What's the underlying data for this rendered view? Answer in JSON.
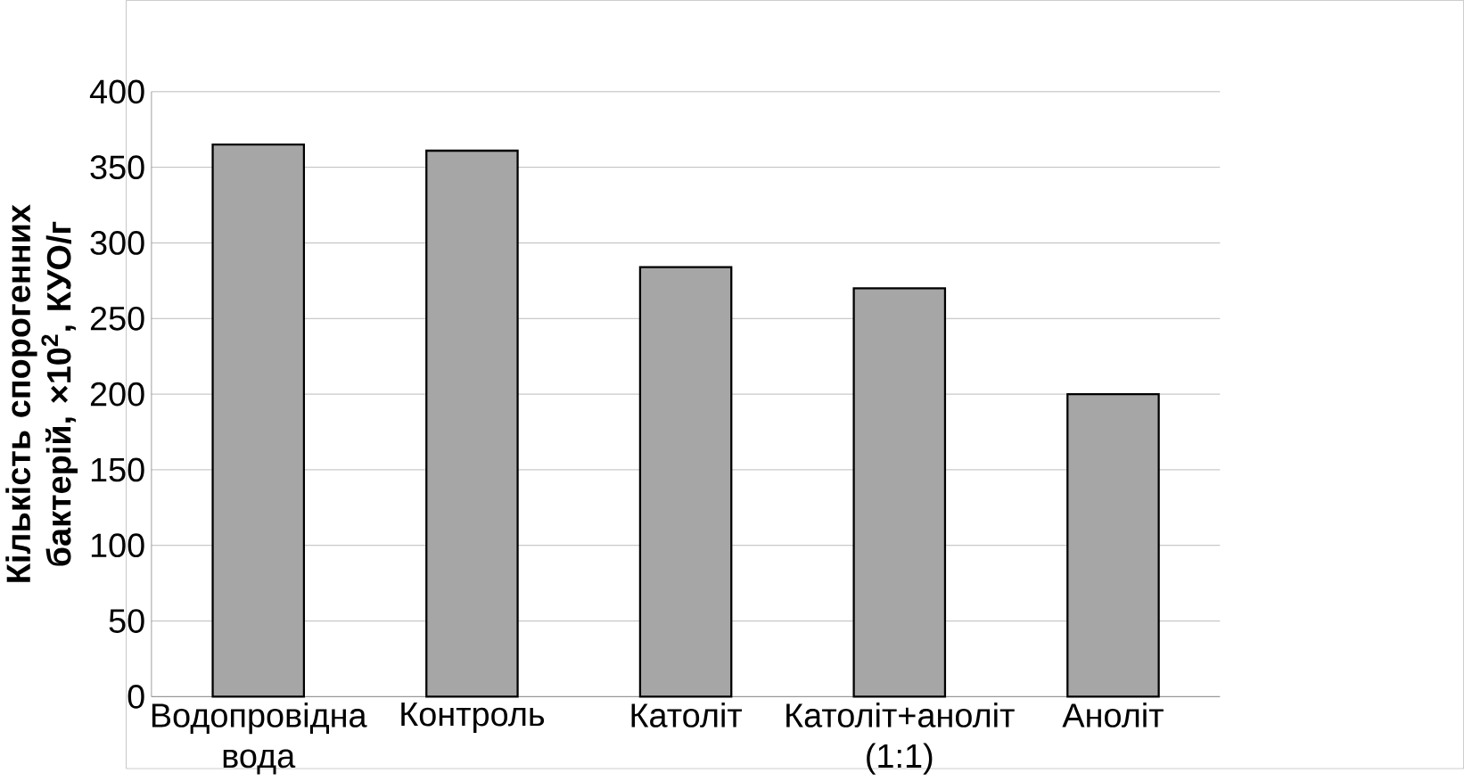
{
  "chart_data": {
    "type": "bar",
    "ylabel": "Кількість спорогенних бактерій, ×10$^{2}$, КУО/г",
    "categories": [
      "Водопровідна вода",
      "Контроль",
      "Католіт",
      "Католіт+аноліт (1:1)",
      "Аноліт"
    ],
    "values": [
      365,
      361,
      284,
      270,
      200
    ],
    "color": "#a6a6a6",
    "ylim": [
      0,
      400
    ],
    "yticks": [
      0,
      50,
      100,
      150,
      200,
      250,
      300,
      350,
      400
    ],
    "grid": "y"
  }
}
